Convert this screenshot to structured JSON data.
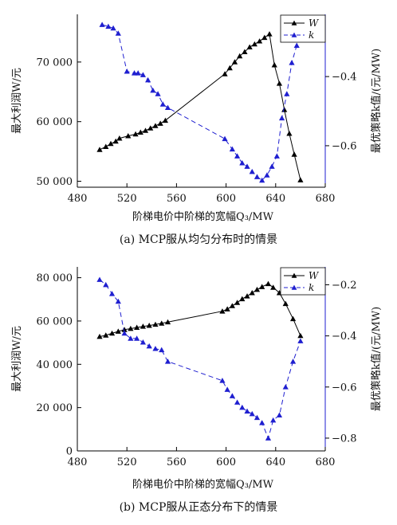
{
  "chart_data": [
    {
      "type": "line",
      "caption": "(a) MCP服从均匀分布时的情景",
      "xlabel": "阶梯电价中阶梯的宽幅Q₃/MW",
      "ylabel_left": "最大利润W/元",
      "ylabel_right": "最优策略k值/(元/MW)",
      "xlim": [
        480,
        680
      ],
      "xticks": [
        "480",
        "520",
        "560",
        "600",
        "640",
        "680"
      ],
      "ylim_left": [
        49000,
        78000
      ],
      "yticks_left": [
        {
          "v": 50000,
          "t": "50 000"
        },
        {
          "v": 60000,
          "t": "60 000"
        },
        {
          "v": 70000,
          "t": "70 000"
        }
      ],
      "ylim_right": [
        -0.72,
        -0.22
      ],
      "yticks_right": [
        {
          "v": -0.4,
          "t": "−0.4"
        },
        {
          "v": -0.6,
          "t": "−0.6"
        }
      ],
      "legend": {
        "position": "top-right",
        "entries": [
          "W",
          "k"
        ]
      },
      "series": [
        {
          "name": "W",
          "axis": "left",
          "color": "#000000",
          "style": "solid",
          "x": [
            498,
            503,
            507,
            511,
            514,
            521,
            527,
            531,
            535,
            539,
            543,
            547,
            551,
            599,
            603,
            607,
            611,
            615,
            619,
            623,
            627,
            631,
            635,
            639,
            643,
            647,
            651,
            655,
            660
          ],
          "y": [
            55300,
            55800,
            56300,
            56700,
            57200,
            57600,
            57900,
            58200,
            58500,
            58900,
            59300,
            59700,
            60200,
            68000,
            69000,
            70000,
            71000,
            71700,
            72500,
            73000,
            73500,
            74100,
            74700,
            69500,
            66400,
            62000,
            58000,
            54500,
            50200
          ]
        },
        {
          "name": "k",
          "axis": "right",
          "color": "#1f1fd0",
          "style": "dashed",
          "x": [
            500,
            505,
            509,
            513,
            520,
            526,
            529,
            533,
            537,
            541,
            545,
            549,
            553,
            599,
            605,
            609,
            613,
            617,
            621,
            625,
            629,
            633,
            637,
            641,
            645,
            649,
            653,
            657,
            661
          ],
          "y": [
            -0.25,
            -0.255,
            -0.26,
            -0.275,
            -0.385,
            -0.39,
            -0.39,
            -0.395,
            -0.41,
            -0.44,
            -0.45,
            -0.48,
            -0.49,
            -0.58,
            -0.61,
            -0.63,
            -0.65,
            -0.66,
            -0.675,
            -0.69,
            -0.7,
            -0.685,
            -0.66,
            -0.63,
            -0.52,
            -0.45,
            -0.36,
            -0.31,
            -0.265
          ]
        }
      ]
    },
    {
      "type": "line",
      "caption": "(b) MCP服从正态分布下的情景",
      "xlabel": "阶梯电价中阶梯的宽幅Q₃/MW",
      "ylabel_left": "最大利润W/元",
      "ylabel_right": "最优策略k值/(元/MW)",
      "xlim": [
        480,
        680
      ],
      "xticks": [
        "480",
        "520",
        "560",
        "600",
        "640",
        "680"
      ],
      "ylim_left": [
        0,
        85000
      ],
      "yticks_left": [
        {
          "v": 0,
          "t": "0"
        },
        {
          "v": 20000,
          "t": "20 000"
        },
        {
          "v": 40000,
          "t": "40 000"
        },
        {
          "v": 60000,
          "t": "60 000"
        },
        {
          "v": 80000,
          "t": "80 000"
        }
      ],
      "ylim_right": [
        -0.85,
        -0.13
      ],
      "yticks_right": [
        {
          "v": -0.2,
          "t": "−0.2"
        },
        {
          "v": -0.4,
          "t": "−0.4"
        },
        {
          "v": -0.6,
          "t": "−0.6"
        },
        {
          "v": -0.8,
          "t": "−0.8"
        }
      ],
      "legend": {
        "position": "top-right",
        "entries": [
          "W",
          "k"
        ]
      },
      "series": [
        {
          "name": "W",
          "axis": "left",
          "color": "#000000",
          "style": "solid",
          "x": [
            498,
            503,
            508,
            513,
            518,
            523,
            528,
            533,
            538,
            543,
            548,
            553,
            597,
            601,
            605,
            609,
            613,
            617,
            621,
            625,
            629,
            634,
            638,
            643,
            648,
            654,
            660
          ],
          "y": [
            52800,
            53400,
            54300,
            55200,
            56000,
            56500,
            57000,
            57500,
            57900,
            58400,
            58900,
            59500,
            64500,
            65500,
            67000,
            68500,
            70200,
            71500,
            73000,
            74500,
            75800,
            77200,
            75500,
            73000,
            68000,
            61000,
            53200
          ]
        },
        {
          "name": "k",
          "axis": "right",
          "color": "#1f1fd0",
          "style": "dashed",
          "x": [
            498,
            503,
            508,
            513,
            518,
            523,
            528,
            533,
            538,
            543,
            548,
            553,
            597,
            601,
            605,
            609,
            613,
            617,
            621,
            625,
            629,
            634,
            638,
            643,
            648,
            654,
            660
          ],
          "y": [
            -0.18,
            -0.2,
            -0.235,
            -0.265,
            -0.39,
            -0.41,
            -0.41,
            -0.425,
            -0.44,
            -0.45,
            -0.455,
            -0.5,
            -0.575,
            -0.61,
            -0.635,
            -0.66,
            -0.68,
            -0.695,
            -0.705,
            -0.72,
            -0.74,
            -0.8,
            -0.73,
            -0.71,
            -0.6,
            -0.5,
            -0.42
          ]
        }
      ]
    }
  ]
}
